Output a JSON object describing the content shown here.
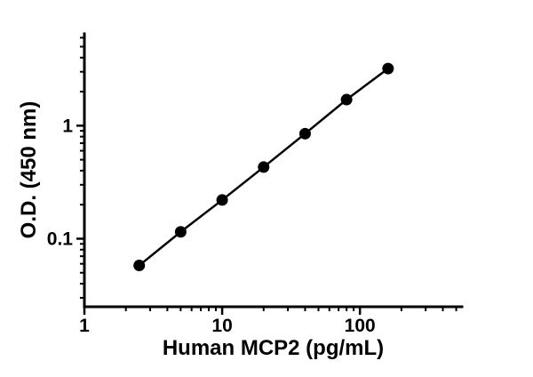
{
  "chart_data": {
    "type": "scatter",
    "title": "",
    "xlabel": "Human MCP2 (pg/mL)",
    "ylabel": "O.D. (450 nm)",
    "xscale": "log",
    "yscale": "log",
    "xlim": [
      1,
      550
    ],
    "ylim": [
      0.025,
      6.5
    ],
    "x": [
      2.5,
      5,
      10,
      20,
      40,
      80,
      160
    ],
    "y": [
      0.058,
      0.115,
      0.22,
      0.43,
      0.85,
      1.7,
      3.2
    ],
    "x_major_ticks": [
      {
        "value": 1,
        "label": "1"
      },
      {
        "value": 10,
        "label": "10"
      },
      {
        "value": 100,
        "label": "100"
      }
    ],
    "y_major_ticks": [
      {
        "value": 0.1,
        "label": "0.1"
      },
      {
        "value": 1,
        "label": "1"
      }
    ],
    "grid": false,
    "legend": "none",
    "line": true,
    "marker": "filled-circle",
    "color": "#000000",
    "background": "#ffffff"
  }
}
